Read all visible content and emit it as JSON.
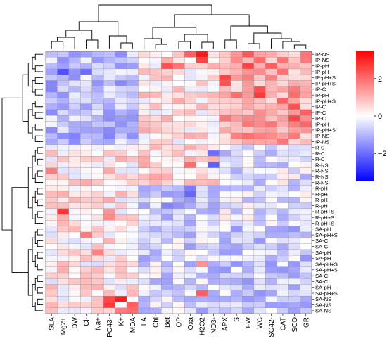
{
  "chart_data": {
    "type": "heatmap",
    "title": "",
    "xlabel": "",
    "ylabel": "",
    "columns": [
      "SLA",
      "Mg2+",
      "DW",
      "Cl-",
      "Na+",
      "PO43-",
      "K+",
      "MDA",
      "LA",
      "Chl",
      "Bet",
      "OP",
      "Oxa",
      "H2O2",
      "NO3-",
      "APX",
      "S",
      "FW",
      "WC",
      "SO42-",
      "CAT",
      "SOD",
      "GR"
    ],
    "rows": [
      "IP-NS",
      "IP-NS",
      "IP-pH",
      "IP-pH",
      "IP-pH+S",
      "IP-pH+S",
      "IP-C",
      "IP-pH",
      "IP-pH+S",
      "IP-C",
      "IP-C",
      "IP-C",
      "IP-pH",
      "IP-pH+S",
      "IP-NS",
      "IP-NS",
      "R-C",
      "R-C",
      "R-C",
      "R-NS",
      "R-NS",
      "R-NS",
      "R-NS",
      "R-pH",
      "R-pH",
      "R-pH",
      "R-pH",
      "R-pH+S",
      "R-pH+S",
      "R-pH+S",
      "SA-pH",
      "SA-pH+S",
      "SA-C",
      "SA-C",
      "SA-pH",
      "SA-pH",
      "SA-pH+S",
      "SA-pH+S",
      "SA-C",
      "SA-C",
      "SA-pH",
      "SA-pH+S",
      "SA-NS",
      "SA-NS",
      "SA-NS"
    ],
    "colorbar": {
      "ticks": [
        2,
        0,
        -2
      ],
      "range": [
        -3.5,
        3.5
      ]
    },
    "colors": {
      "low": "#0000ff",
      "mid": "#ffffff",
      "high": "#ff0000"
    },
    "group_blocks": [
      {
        "rows": [
          0,
          15
        ],
        "cols": [
          0,
          7
        ],
        "value": -0.9
      },
      {
        "rows": [
          0,
          15
        ],
        "cols": [
          8,
          14
        ],
        "value": 0.4
      },
      {
        "rows": [
          0,
          15
        ],
        "cols": [
          15,
          22
        ],
        "value": 1.2
      },
      {
        "rows": [
          16,
          29
        ],
        "cols": [
          0,
          7
        ],
        "value": 0.4
      },
      {
        "rows": [
          16,
          22
        ],
        "cols": [
          8,
          14
        ],
        "value": 0.5
      },
      {
        "rows": [
          23,
          29
        ],
        "cols": [
          8,
          14
        ],
        "value": -0.7
      },
      {
        "rows": [
          16,
          29
        ],
        "cols": [
          15,
          22
        ],
        "value": -0.4
      },
      {
        "rows": [
          30,
          44
        ],
        "cols": [
          0,
          7
        ],
        "value": 0.3
      },
      {
        "rows": [
          30,
          44
        ],
        "cols": [
          8,
          14
        ],
        "value": -0.6
      },
      {
        "rows": [
          30,
          44
        ],
        "cols": [
          15,
          22
        ],
        "value": -0.7
      }
    ],
    "highlights": [
      {
        "row": 0,
        "col": 13,
        "value": 3.2
      },
      {
        "row": 0,
        "col": 12,
        "value": 2.2
      },
      {
        "row": 0,
        "col": 17,
        "value": 2.3
      },
      {
        "row": 1,
        "col": 13,
        "value": 2.6
      },
      {
        "row": 1,
        "col": 18,
        "value": 2.0
      },
      {
        "row": 2,
        "col": 10,
        "value": 2.4
      },
      {
        "row": 2,
        "col": 11,
        "value": 1.9
      },
      {
        "row": 2,
        "col": 17,
        "value": 2.6
      },
      {
        "row": 2,
        "col": 19,
        "value": 2.2
      },
      {
        "row": 4,
        "col": 15,
        "value": 2.6
      },
      {
        "row": 5,
        "col": 15,
        "value": 2.4
      },
      {
        "row": 6,
        "col": 18,
        "value": 2.4
      },
      {
        "row": 7,
        "col": 18,
        "value": 2.7
      },
      {
        "row": 7,
        "col": 21,
        "value": 2.0
      },
      {
        "row": 8,
        "col": 20,
        "value": 2.2
      },
      {
        "row": 9,
        "col": 21,
        "value": 2.4
      },
      {
        "row": 10,
        "col": 22,
        "value": 2.2
      },
      {
        "row": 11,
        "col": 21,
        "value": 2.6
      },
      {
        "row": 12,
        "col": 22,
        "value": 2.1
      },
      {
        "row": 19,
        "col": 12,
        "value": 2.0
      },
      {
        "row": 20,
        "col": 0,
        "value": 1.8
      },
      {
        "row": 27,
        "col": 1,
        "value": 2.8
      },
      {
        "row": 27,
        "col": 5,
        "value": 1.5
      },
      {
        "row": 28,
        "col": 5,
        "value": 1.6
      },
      {
        "row": 31,
        "col": 3,
        "value": 1.8
      },
      {
        "row": 34,
        "col": 4,
        "value": 1.7
      },
      {
        "row": 36,
        "col": 13,
        "value": 1.5
      },
      {
        "row": 41,
        "col": 13,
        "value": 2.2
      },
      {
        "row": 42,
        "col": 5,
        "value": 2.5
      },
      {
        "row": 42,
        "col": 6,
        "value": 3.1
      },
      {
        "row": 43,
        "col": 5,
        "value": 2.7
      },
      {
        "row": 43,
        "col": 7,
        "value": 2.2
      },
      {
        "row": 44,
        "col": 6,
        "value": 1.8
      },
      {
        "row": 44,
        "col": 7,
        "value": 2.0
      },
      {
        "row": 3,
        "col": 1,
        "value": -2.4
      },
      {
        "row": 3,
        "col": 3,
        "value": -2.0
      },
      {
        "row": 17,
        "col": 14,
        "value": -2.0
      },
      {
        "row": 19,
        "col": 14,
        "value": -2.2
      },
      {
        "row": 23,
        "col": 12,
        "value": -1.8
      },
      {
        "row": 24,
        "col": 12,
        "value": -2.1
      },
      {
        "row": 26,
        "col": 10,
        "value": -1.7
      }
    ]
  }
}
